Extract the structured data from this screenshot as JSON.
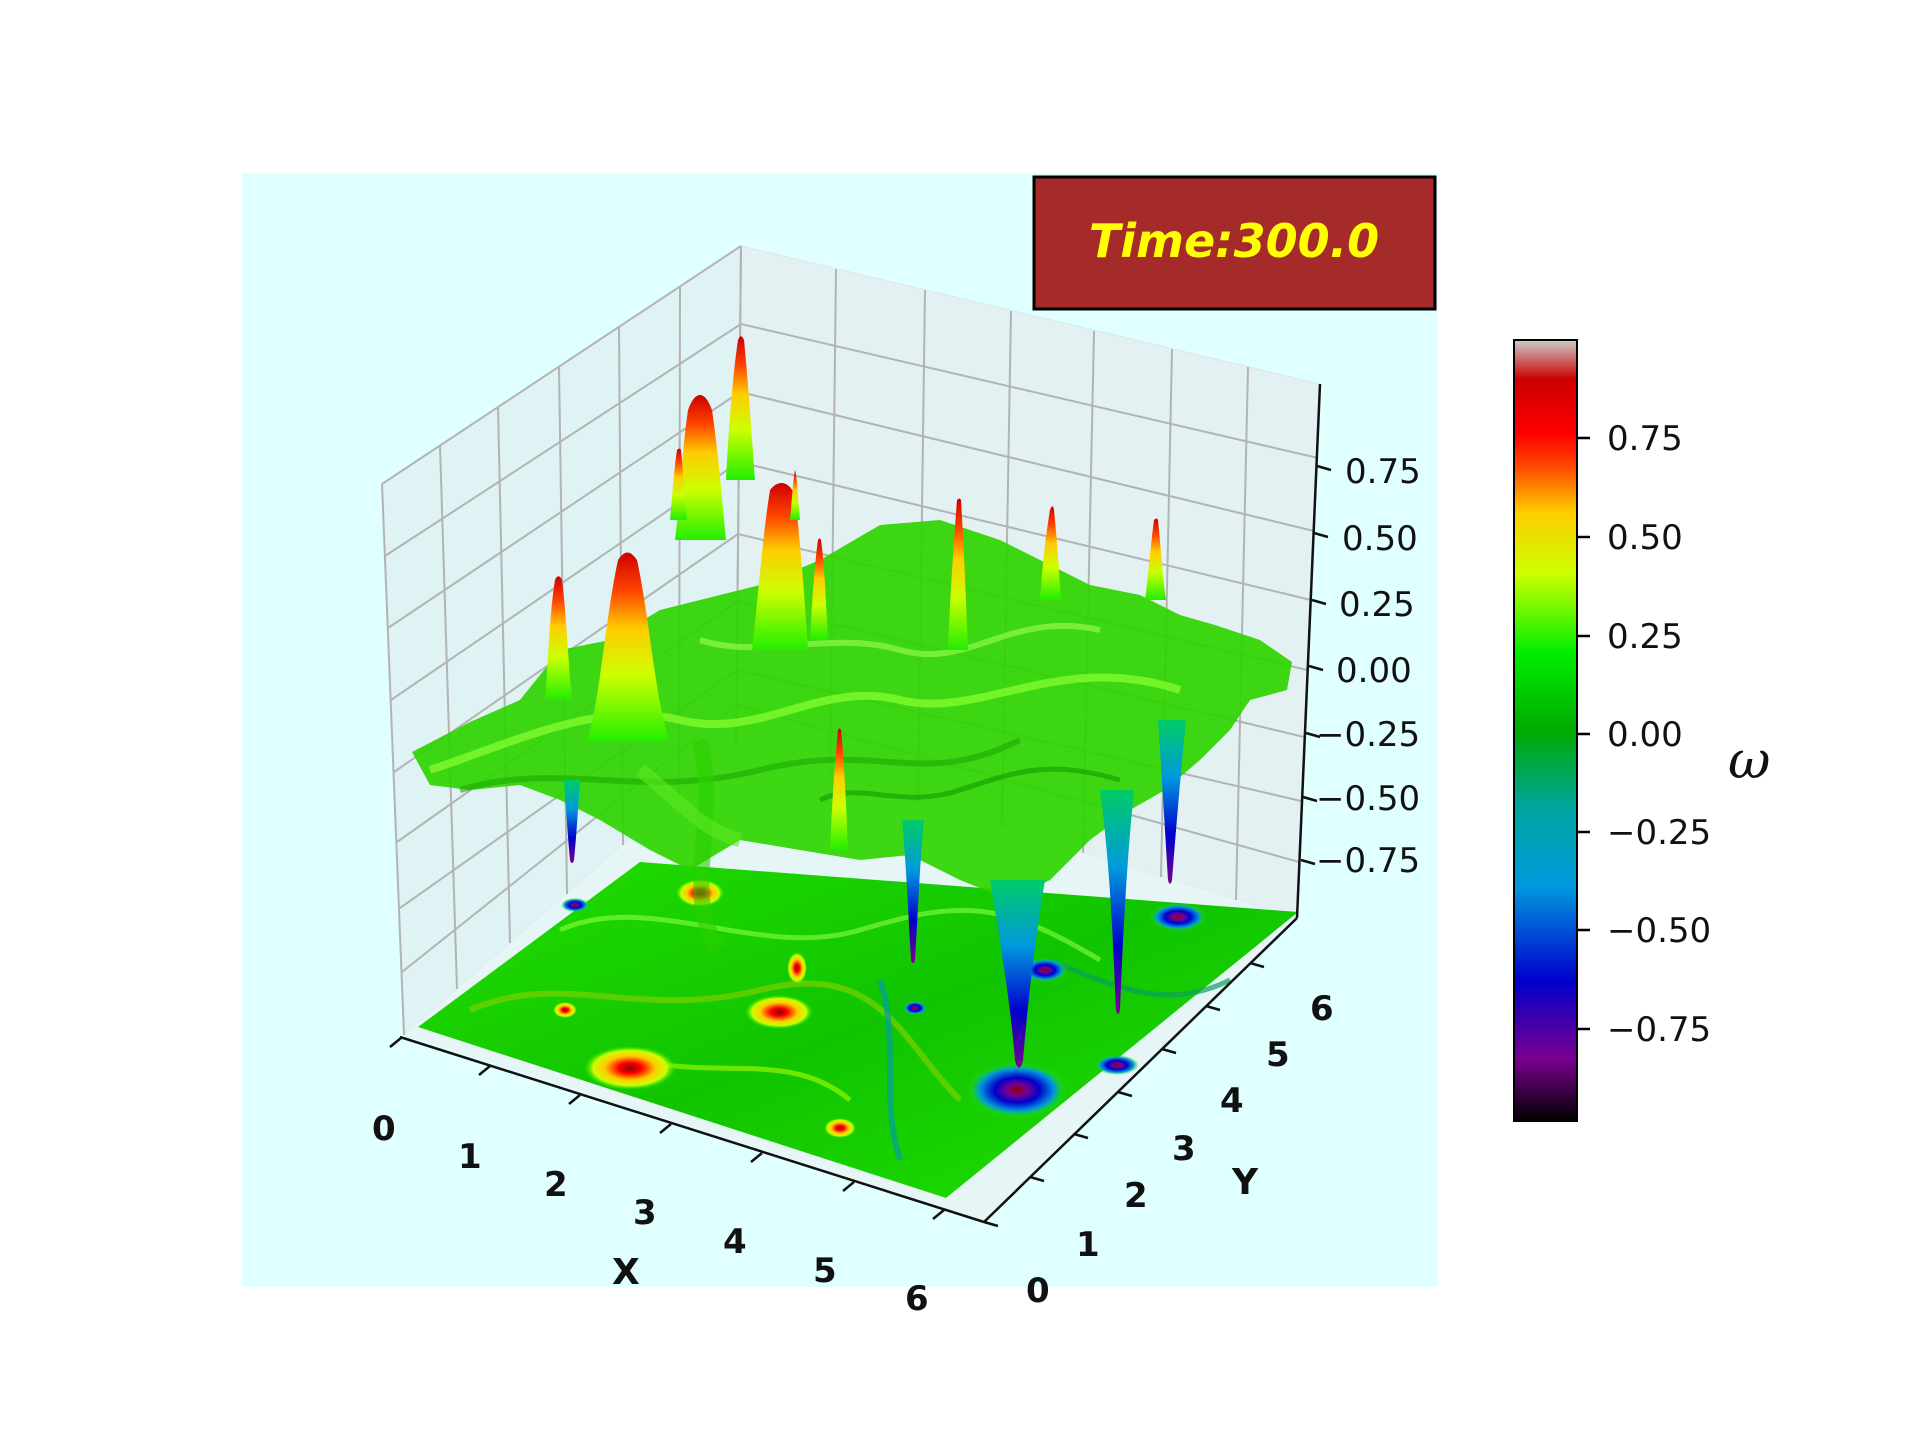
{
  "chart_data": {
    "type": "surface",
    "annotation": "Time:300.0",
    "xlabel": "X",
    "ylabel": "Y",
    "colorbar_label": "ω",
    "x_ticks": [
      "0",
      "1",
      "2",
      "3",
      "4",
      "5",
      "6"
    ],
    "y_ticks": [
      "0",
      "1",
      "2",
      "3",
      "4",
      "5",
      "6"
    ],
    "z_ticks": [
      "0.75",
      "0.50",
      "0.25",
      "0.00",
      "−0.25",
      "−0.50",
      "−0.75"
    ],
    "colorbar_ticks": [
      "0.75",
      "0.50",
      "0.25",
      "0.00",
      "−0.25",
      "−0.50",
      "−0.75"
    ],
    "xlim": [
      0,
      6.28
    ],
    "ylim": [
      0,
      6.28
    ],
    "zlim": [
      -1,
      1
    ],
    "colormap": "nipy_spectral",
    "pane_color": "#e0ffff",
    "annotation_box_color": "#a52a2a",
    "annotation_text_color": "#ffff00",
    "peaks": [
      {
        "x": 0.9,
        "y": 6.2,
        "value": 0.8
      },
      {
        "x": 2.6,
        "y": 5.4,
        "value": 0.95
      },
      {
        "x": 2.3,
        "y": 6.2,
        "value": 0.9
      },
      {
        "x": 3.1,
        "y": 5.0,
        "value": 0.9
      },
      {
        "x": 3.1,
        "y": 4.2,
        "value": 0.55
      },
      {
        "x": 0.9,
        "y": 5.2,
        "value": 0.85
      },
      {
        "x": 5.6,
        "y": 5.0,
        "value": 0.5
      },
      {
        "x": 4.2,
        "y": 3.8,
        "value": 0.6
      }
    ],
    "troughs": [
      {
        "x": 5.0,
        "y": 0.9,
        "value": -0.95
      },
      {
        "x": 6.1,
        "y": 2.2,
        "value": -0.85
      },
      {
        "x": 6.2,
        "y": 4.0,
        "value": -0.75
      },
      {
        "x": 4.5,
        "y": 2.6,
        "value": -0.6
      },
      {
        "x": 1.8,
        "y": 5.8,
        "value": -0.55
      }
    ]
  }
}
